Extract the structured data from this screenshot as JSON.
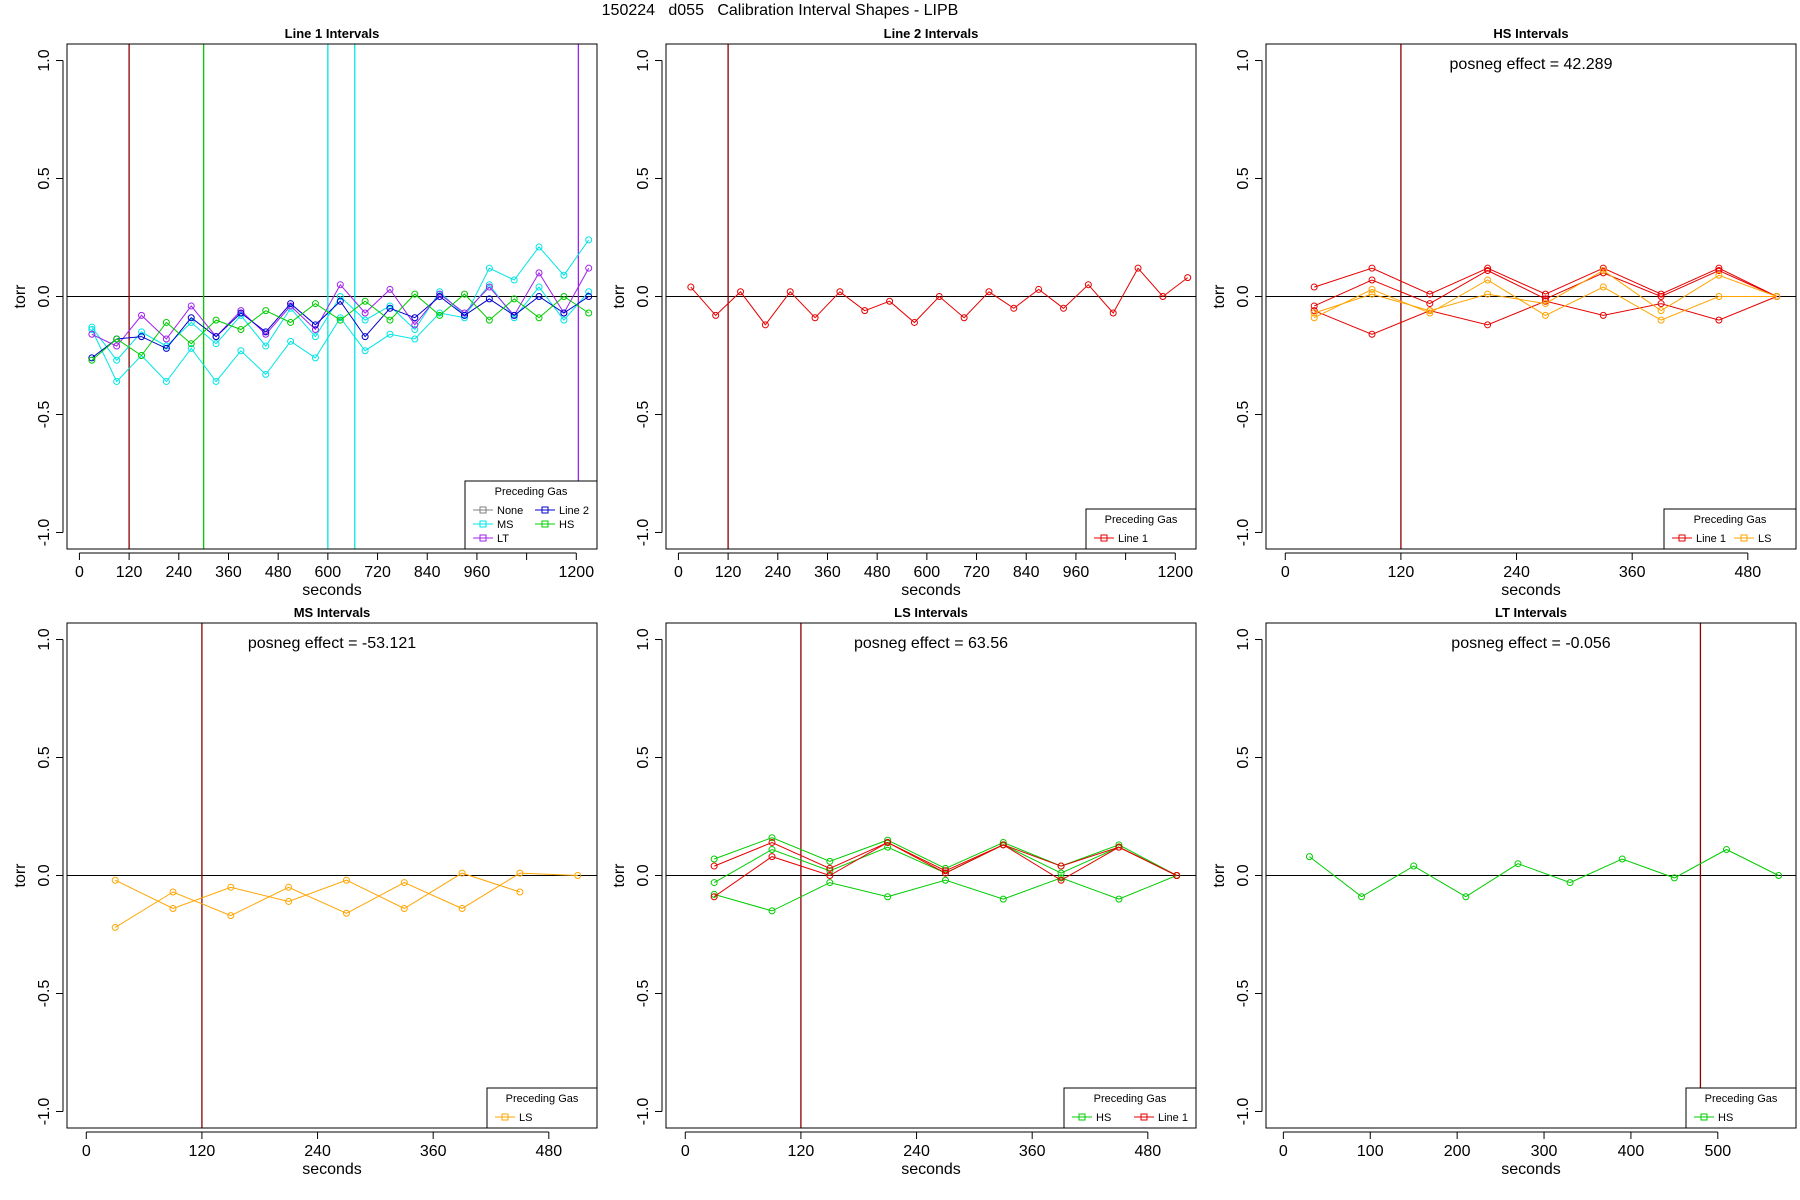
{
  "title": "150224   d055   Calibration Interval Shapes - LIPB",
  "colors": {
    "None": "#808080",
    "MS": "#00e5e5",
    "LT": "#a020f0",
    "Line 2": "#0000cd",
    "HS": "#00cd00",
    "Line 1": "#e60000",
    "LS": "#ffa500"
  },
  "chart_data": [
    {
      "type": "line",
      "title": "Line 1 Intervals",
      "xlabel": "seconds",
      "ylabel": "torr",
      "xlim": [
        -30,
        1250
      ],
      "ylim": [
        -1.07,
        1.07
      ],
      "xticks": [
        0,
        120,
        240,
        360,
        480,
        600,
        720,
        840,
        960,
        1080,
        1200
      ],
      "xticklabels": [
        "0",
        "120",
        "240",
        "360",
        "480",
        "600",
        "720",
        "840",
        "960",
        "",
        "1200"
      ],
      "yticks": [
        -1.0,
        -0.5,
        0.0,
        0.5,
        1.0
      ],
      "yticklabels": [
        "-1.0",
        "-0.5",
        "0.0",
        "0.5",
        "1.0"
      ],
      "vlines": [
        {
          "x": 120,
          "color": "#8b0000"
        },
        {
          "x": 300,
          "color": "#00cd00"
        },
        {
          "x": 600,
          "color": "#00e5e5"
        },
        {
          "x": 665,
          "color": "#00e5e5"
        },
        {
          "x": 1205,
          "color": "#a020f0"
        }
      ],
      "legend": {
        "title": "Preceding Gas",
        "columns": 2,
        "position": "bottom-right",
        "entries": [
          "None",
          "Line 2",
          "MS",
          "HS",
          "LT"
        ]
      },
      "series": [
        {
          "name": "MS",
          "color": "#00e5e5",
          "x": [
            30,
            90,
            150,
            210,
            270,
            330,
            390,
            450,
            510,
            570,
            630,
            690,
            750,
            810,
            870,
            930,
            990,
            1050,
            1110,
            1170,
            1230
          ],
          "y": [
            -0.14,
            -0.36,
            -0.25,
            -0.36,
            -0.22,
            -0.36,
            -0.23,
            -0.33,
            -0.19,
            -0.26,
            -0.09,
            -0.23,
            -0.16,
            -0.18,
            -0.07,
            -0.09,
            0.12,
            0.07,
            0.21,
            0.09,
            0.24
          ]
        },
        {
          "name": "MS",
          "color": "#00e5e5",
          "x": [
            30,
            90,
            150,
            210,
            270,
            330,
            390,
            450,
            510,
            570,
            630,
            690,
            750,
            810,
            870,
            930,
            990,
            1050,
            1110,
            1170,
            1230
          ],
          "y": [
            -0.13,
            -0.27,
            -0.15,
            -0.21,
            -0.11,
            -0.2,
            -0.08,
            -0.21,
            -0.05,
            -0.17,
            0.0,
            -0.1,
            -0.04,
            -0.14,
            0.02,
            -0.08,
            0.05,
            -0.09,
            0.04,
            -0.1,
            0.02
          ]
        },
        {
          "name": "LT",
          "color": "#a020f0",
          "x": [
            30,
            90,
            150,
            210,
            270,
            330,
            390,
            450,
            510,
            570,
            630,
            690,
            750,
            810,
            870,
            930,
            990,
            1050,
            1110,
            1170,
            1230
          ],
          "y": [
            -0.16,
            -0.21,
            -0.08,
            -0.18,
            -0.04,
            -0.17,
            -0.06,
            -0.16,
            -0.04,
            -0.14,
            0.05,
            -0.07,
            0.03,
            -0.12,
            0.01,
            -0.07,
            0.04,
            -0.08,
            0.1,
            -0.07,
            0.12
          ]
        },
        {
          "name": "Line 2",
          "color": "#0000cd",
          "x": [
            30,
            90,
            150,
            210,
            270,
            330,
            390,
            450,
            510,
            570,
            630,
            690,
            750,
            810,
            870,
            930,
            990,
            1050,
            1110,
            1170,
            1230
          ],
          "y": [
            -0.26,
            -0.18,
            -0.17,
            -0.22,
            -0.09,
            -0.17,
            -0.07,
            -0.15,
            -0.03,
            -0.12,
            -0.02,
            -0.17,
            -0.05,
            -0.09,
            0.0,
            -0.08,
            -0.01,
            -0.08,
            0.0,
            -0.07,
            0.0
          ]
        },
        {
          "name": "HS",
          "color": "#00cd00",
          "x": [
            30,
            90,
            150,
            210,
            270,
            330,
            390,
            450,
            510,
            570,
            630,
            690,
            750,
            810,
            870,
            930,
            990,
            1050,
            1110,
            1170,
            1230
          ],
          "y": [
            -0.27,
            -0.18,
            -0.25,
            -0.11,
            -0.2,
            -0.1,
            -0.14,
            -0.06,
            -0.11,
            -0.03,
            -0.1,
            -0.02,
            -0.1,
            0.01,
            -0.08,
            0.01,
            -0.1,
            -0.01,
            -0.09,
            0.0,
            -0.07
          ]
        }
      ]
    },
    {
      "type": "line",
      "title": "Line 2 Intervals",
      "xlabel": "seconds",
      "ylabel": "torr",
      "xlim": [
        -30,
        1250
      ],
      "ylim": [
        -1.07,
        1.07
      ],
      "xticks": [
        0,
        120,
        240,
        360,
        480,
        600,
        720,
        840,
        960,
        1080,
        1200
      ],
      "xticklabels": [
        "0",
        "120",
        "240",
        "360",
        "480",
        "600",
        "720",
        "840",
        "960",
        "",
        "1200"
      ],
      "yticks": [
        -1.0,
        -0.5,
        0.0,
        0.5,
        1.0
      ],
      "yticklabels": [
        "-1.0",
        "-0.5",
        "0.0",
        "0.5",
        "1.0"
      ],
      "vlines": [
        {
          "x": 120,
          "color": "#8b0000"
        }
      ],
      "legend": {
        "title": "Preceding Gas",
        "columns": 1,
        "position": "bottom-right",
        "entries": [
          "Line 1"
        ]
      },
      "series": [
        {
          "name": "Line 1",
          "color": "#e60000",
          "x": [
            30,
            90,
            150,
            210,
            270,
            330,
            390,
            450,
            510,
            570,
            630,
            690,
            750,
            810,
            870,
            930,
            990,
            1050,
            1110,
            1170,
            1230
          ],
          "y": [
            0.04,
            -0.08,
            0.02,
            -0.12,
            0.02,
            -0.09,
            0.02,
            -0.06,
            -0.02,
            -0.11,
            0.0,
            -0.09,
            0.02,
            -0.05,
            0.03,
            -0.05,
            0.05,
            -0.07,
            0.12,
            0.0,
            0.08
          ]
        }
      ]
    },
    {
      "type": "line",
      "title": "HS Intervals",
      "annotation": "posneg effect = 42.289",
      "xlabel": "seconds",
      "ylabel": "torr",
      "xlim": [
        -20,
        530
      ],
      "ylim": [
        -1.07,
        1.07
      ],
      "xticks": [
        0,
        120,
        240,
        360,
        480
      ],
      "xticklabels": [
        "0",
        "120",
        "240",
        "360",
        "480"
      ],
      "yticks": [
        -1.0,
        -0.5,
        0.0,
        0.5,
        1.0
      ],
      "yticklabels": [
        "-1.0",
        "-0.5",
        "0.0",
        "0.5",
        "1.0"
      ],
      "vlines": [
        {
          "x": 120,
          "color": "#8b0000"
        }
      ],
      "legend": {
        "title": "Preceding Gas",
        "columns": 2,
        "position": "bottom-right",
        "entries": [
          "Line 1",
          "LS"
        ]
      },
      "series": [
        {
          "name": "Line 1",
          "color": "#e60000",
          "x": [
            30,
            90,
            150,
            210,
            270,
            330,
            390,
            450,
            510
          ],
          "y": [
            0.04,
            0.12,
            0.01,
            0.12,
            0.01,
            0.12,
            0.01,
            0.12,
            0.0
          ]
        },
        {
          "name": "Line 1",
          "color": "#e60000",
          "x": [
            30,
            90,
            150,
            210,
            270,
            330,
            390,
            450,
            510
          ],
          "y": [
            -0.04,
            0.07,
            -0.03,
            0.11,
            -0.01,
            0.1,
            0.0,
            0.11,
            0.0
          ]
        },
        {
          "name": "Line 1",
          "color": "#e60000",
          "x": [
            30,
            90,
            150,
            210,
            270,
            330,
            390,
            450,
            510
          ],
          "y": [
            -0.06,
            -0.16,
            -0.06,
            -0.12,
            -0.02,
            -0.08,
            -0.03,
            -0.1,
            0.0
          ]
        },
        {
          "name": "LS",
          "color": "#ffa500",
          "x": [
            30,
            90,
            150,
            210,
            270,
            330,
            390,
            450,
            510
          ],
          "y": [
            -0.09,
            0.03,
            -0.07,
            0.07,
            -0.08,
            0.04,
            -0.1,
            0.0,
            0.0
          ]
        },
        {
          "name": "LS",
          "color": "#ffa500",
          "x": [
            30,
            90,
            150,
            210,
            270,
            330,
            390,
            450,
            510
          ],
          "y": [
            -0.07,
            0.01,
            -0.06,
            0.01,
            -0.03,
            0.11,
            -0.06,
            0.09,
            0.0
          ]
        }
      ]
    },
    {
      "type": "line",
      "title": "MS Intervals",
      "annotation": "posneg effect = -53.121",
      "xlabel": "seconds",
      "ylabel": "torr",
      "xlim": [
        -20,
        530
      ],
      "ylim": [
        -1.07,
        1.07
      ],
      "xticks": [
        0,
        120,
        240,
        360,
        480
      ],
      "xticklabels": [
        "0",
        "120",
        "240",
        "360",
        "480"
      ],
      "yticks": [
        -1.0,
        -0.5,
        0.0,
        0.5,
        1.0
      ],
      "yticklabels": [
        "-1.0",
        "-0.5",
        "0.0",
        "0.5",
        "1.0"
      ],
      "vlines": [
        {
          "x": 120,
          "color": "#8b0000"
        }
      ],
      "legend": {
        "title": "Preceding Gas",
        "columns": 1,
        "position": "bottom-right",
        "entries": [
          "LS"
        ]
      },
      "series": [
        {
          "name": "LS",
          "color": "#ffa500",
          "x": [
            30,
            90,
            150,
            210,
            270,
            330,
            390,
            450,
            510
          ],
          "y": [
            -0.22,
            -0.07,
            -0.17,
            -0.05,
            -0.16,
            -0.03,
            -0.14,
            0.01,
            0.0
          ]
        },
        {
          "name": "LS",
          "color": "#ffa500",
          "x": [
            30,
            90,
            150,
            210,
            270,
            330,
            390,
            450
          ],
          "y": [
            -0.02,
            -0.14,
            -0.05,
            -0.11,
            -0.02,
            -0.14,
            0.01,
            -0.07
          ]
        }
      ]
    },
    {
      "type": "line",
      "title": "LS Intervals",
      "annotation": "posneg effect = 63.56",
      "xlabel": "seconds",
      "ylabel": "torr",
      "xlim": [
        -20,
        530
      ],
      "ylim": [
        -1.07,
        1.07
      ],
      "xticks": [
        0,
        120,
        240,
        360,
        480
      ],
      "xticklabels": [
        "0",
        "120",
        "240",
        "360",
        "480"
      ],
      "yticks": [
        -1.0,
        -0.5,
        0.0,
        0.5,
        1.0
      ],
      "yticklabels": [
        "-1.0",
        "-0.5",
        "0.0",
        "0.5",
        "1.0"
      ],
      "vlines": [
        {
          "x": 120,
          "color": "#8b0000"
        }
      ],
      "legend": {
        "title": "Preceding Gas",
        "columns": 2,
        "position": "bottom-right",
        "entries": [
          "HS",
          "Line 1"
        ]
      },
      "series": [
        {
          "name": "HS",
          "color": "#00cd00",
          "x": [
            30,
            90,
            150,
            210,
            270,
            330,
            390,
            450,
            510
          ],
          "y": [
            0.07,
            0.16,
            0.06,
            0.15,
            0.03,
            0.14,
            0.04,
            0.13,
            0.0
          ]
        },
        {
          "name": "HS",
          "color": "#00cd00",
          "x": [
            30,
            90,
            150,
            210,
            270,
            330,
            390,
            450,
            510
          ],
          "y": [
            -0.03,
            0.11,
            0.02,
            0.12,
            0.01,
            0.13,
            0.01,
            0.12,
            0.0
          ]
        },
        {
          "name": "HS",
          "color": "#00cd00",
          "x": [
            30,
            90,
            150,
            210,
            270,
            330,
            390,
            450,
            510
          ],
          "y": [
            -0.08,
            -0.15,
            -0.03,
            -0.09,
            -0.02,
            -0.1,
            -0.01,
            -0.1,
            0.0
          ]
        },
        {
          "name": "Line 1",
          "color": "#e60000",
          "x": [
            30,
            90,
            150,
            210,
            270,
            330,
            390,
            450,
            510
          ],
          "y": [
            0.04,
            0.14,
            0.03,
            0.14,
            0.02,
            0.13,
            0.04,
            0.12,
            0.0
          ]
        },
        {
          "name": "Line 1",
          "color": "#e60000",
          "x": [
            30,
            90,
            150,
            210,
            270,
            330,
            390,
            450,
            510
          ],
          "y": [
            -0.09,
            0.08,
            0.0,
            0.14,
            0.01,
            0.13,
            -0.02,
            0.12,
            0.0
          ]
        }
      ]
    },
    {
      "type": "line",
      "title": "LT Intervals",
      "annotation": "posneg effect = -0.056",
      "xlabel": "seconds",
      "ylabel": "torr",
      "xlim": [
        -20,
        590
      ],
      "ylim": [
        -1.07,
        1.07
      ],
      "xticks": [
        0,
        100,
        200,
        300,
        400,
        500
      ],
      "xticklabels": [
        "0",
        "100",
        "200",
        "300",
        "400",
        "500"
      ],
      "yticks": [
        -1.0,
        -0.5,
        0.0,
        0.5,
        1.0
      ],
      "yticklabels": [
        "-1.0",
        "-0.5",
        "0.0",
        "0.5",
        "1.0"
      ],
      "vlines": [
        {
          "x": 480,
          "color": "#8b0000"
        }
      ],
      "legend": {
        "title": "Preceding Gas",
        "columns": 1,
        "position": "bottom-right",
        "entries": [
          "HS"
        ]
      },
      "series": [
        {
          "name": "HS",
          "color": "#00cd00",
          "x": [
            30,
            90,
            150,
            210,
            270,
            330,
            390,
            450,
            510,
            570
          ],
          "y": [
            0.08,
            -0.09,
            0.04,
            -0.09,
            0.05,
            -0.03,
            0.07,
            -0.01,
            0.11,
            0.0
          ]
        }
      ]
    }
  ]
}
